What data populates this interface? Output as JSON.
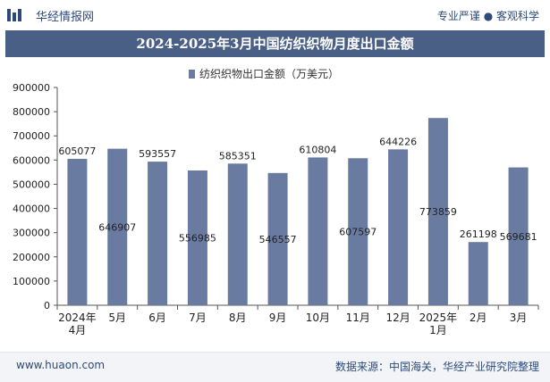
{
  "header": {
    "site_name": "华经情报网",
    "slogan": "专业严谨 ● 客观科学"
  },
  "title": "2024-2025年3月中国纺织织物月度出口金额",
  "footer": {
    "url": "www.huaon.com",
    "source": "数据来源：中国海关，华经产业研究院整理"
  },
  "colors": {
    "bar": "#6a7ba2",
    "title_bg": "#4a5f85",
    "text": "#2c4a7a"
  },
  "chart_data": {
    "type": "bar",
    "categories": [
      [
        "2024年",
        "4月"
      ],
      [
        "5月"
      ],
      [
        "6月"
      ],
      [
        "7月"
      ],
      [
        "8月"
      ],
      [
        "9月"
      ],
      [
        "10月"
      ],
      [
        "11月"
      ],
      [
        "12月"
      ],
      [
        "2025年",
        "1月"
      ],
      [
        "2月"
      ],
      [
        "3月"
      ]
    ],
    "series": [
      {
        "name": "纺织织物出口金额（万美元）",
        "values": [
          605077,
          646907,
          593557,
          556985,
          585351,
          546557,
          610804,
          607597,
          644226,
          773859,
          261198,
          569681
        ]
      }
    ],
    "data_labels": [
      "605077",
      "646907",
      "593557",
      "556985",
      "585351",
      "546557",
      "610804",
      "607597",
      "644226",
      "773859",
      "261198",
      "569681"
    ],
    "label_position": [
      "above",
      "inside",
      "above",
      "inside",
      "above",
      "inside",
      "above",
      "inside",
      "above",
      "inside",
      "above",
      "inside"
    ],
    "yticks": [
      "0",
      "100000",
      "200000",
      "300000",
      "400000",
      "500000",
      "600000",
      "700000",
      "800000",
      "900000"
    ],
    "ylim": [
      0,
      900000
    ],
    "legend_position": "top-center",
    "grid": false
  }
}
